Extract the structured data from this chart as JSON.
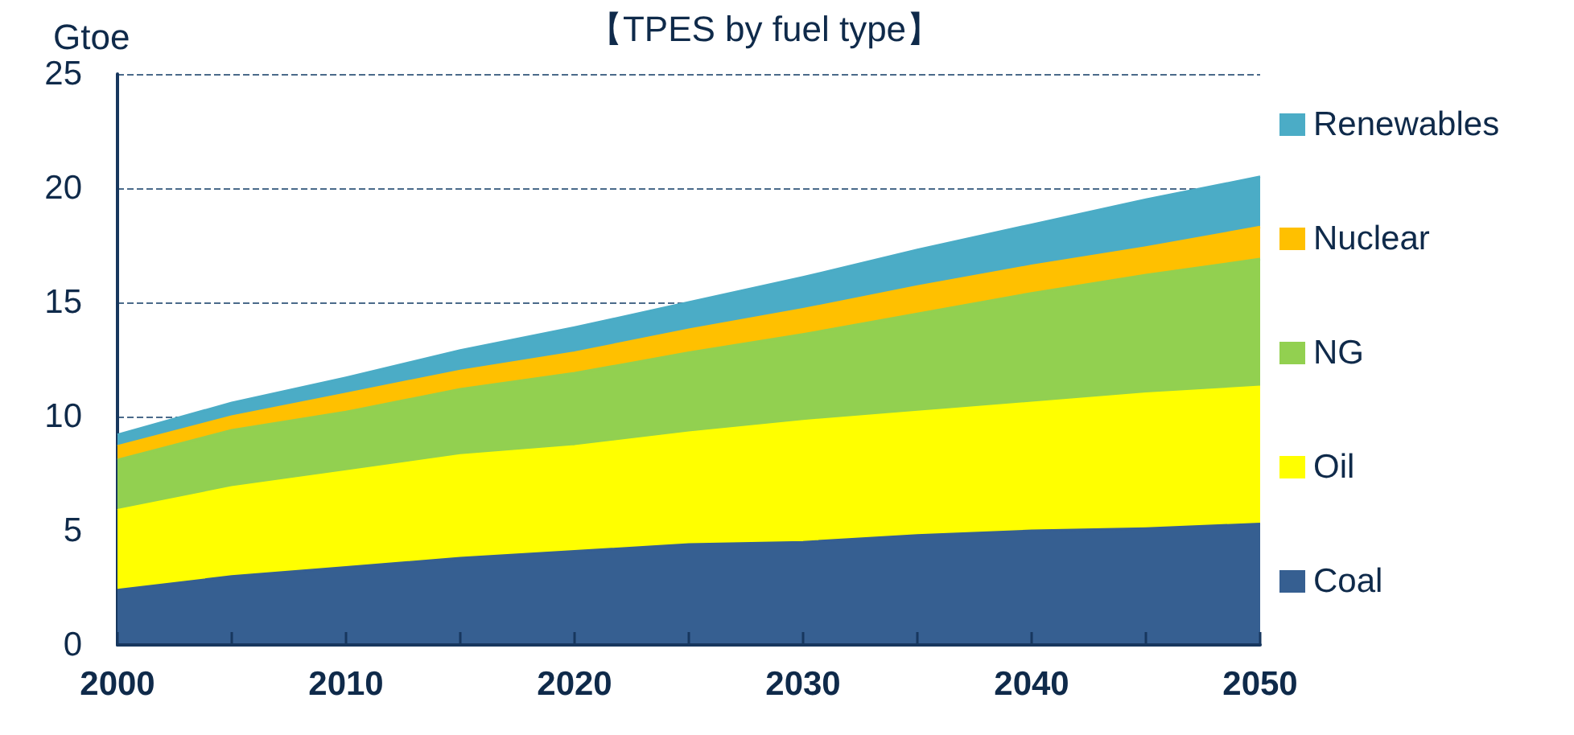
{
  "chart_data": {
    "type": "area",
    "title": "【TPES by fuel type】",
    "ylabel": "Gtoe",
    "stacked": true,
    "x": [
      2000,
      2005,
      2010,
      2015,
      2020,
      2025,
      2030,
      2035,
      2040,
      2045,
      2050
    ],
    "series": [
      {
        "name": "Coal",
        "color": "#365f91",
        "values": [
          2.4,
          3.0,
          3.4,
          3.8,
          4.1,
          4.4,
          4.5,
          4.8,
          5.0,
          5.1,
          5.3
        ]
      },
      {
        "name": "Oil",
        "color": "#ffff00",
        "values": [
          3.5,
          3.9,
          4.2,
          4.5,
          4.6,
          4.9,
          5.3,
          5.4,
          5.6,
          5.9,
          6.0
        ]
      },
      {
        "name": "NG",
        "color": "#92d050",
        "values": [
          2.2,
          2.5,
          2.6,
          2.9,
          3.2,
          3.5,
          3.8,
          4.3,
          4.8,
          5.2,
          5.6
        ]
      },
      {
        "name": "Nuclear",
        "color": "#ffc000",
        "values": [
          0.6,
          0.6,
          0.8,
          0.8,
          0.9,
          1.0,
          1.1,
          1.2,
          1.2,
          1.2,
          1.4
        ]
      },
      {
        "name": "Renewables",
        "color": "#4bacc6",
        "values": [
          0.5,
          0.6,
          0.7,
          0.9,
          1.1,
          1.2,
          1.4,
          1.6,
          1.8,
          2.1,
          2.2
        ]
      }
    ],
    "xlim": [
      2000,
      2050
    ],
    "xticks": [
      2000,
      {
        "value": 2005,
        "label": null
      },
      2010,
      {
        "value": 2015,
        "label": null
      },
      2020,
      {
        "value": 2025,
        "label": null
      },
      2030,
      {
        "value": 2035,
        "label": null
      },
      2040,
      {
        "value": 2045,
        "label": null
      },
      2050
    ],
    "ylim": [
      0,
      25
    ],
    "yticks": [
      0,
      5,
      10,
      15,
      20,
      25
    ],
    "grid": "y",
    "legend": "right",
    "marker": "none"
  }
}
